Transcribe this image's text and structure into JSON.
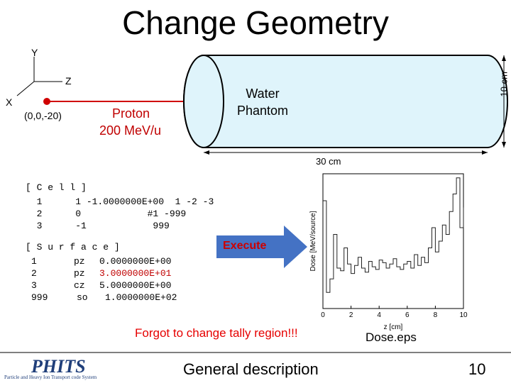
{
  "slide": {
    "title": "Change Geometry",
    "axes": {
      "y": "Y",
      "z": "Z",
      "x": "X"
    },
    "source_position": "(0,0,-20)",
    "beam": {
      "line1": "Proton",
      "line2": "200 MeV/u"
    },
    "phantom": {
      "line1": "Water",
      "line2": "Phantom",
      "diameter": "10 cm",
      "length": "30 cm"
    },
    "cell_header": "[ C e l l ]",
    "cell_rows": [
      "  1      1 -1.0000000E+00  1 -2 -3",
      "  2      0            #1 -999",
      "  3      -1            999"
    ],
    "surface_header": "[ S u r f a c e ]",
    "surface_rows": [
      {
        "num": "1",
        "type": "pz",
        "val": "0.0000000E+00"
      },
      {
        "num": "2",
        "type": "pz",
        "val": "3.0000000E+01"
      },
      {
        "num": "3",
        "type": "cz",
        "val": "5.0000000E+00"
      },
      {
        "num": "999",
        "type": "so",
        "val": "1.0000000E+02"
      }
    ],
    "execute_label": "Execute",
    "warning": "Forgot to change tally region!!!",
    "file_label": "Dose.eps",
    "footer_desc": "General description",
    "page_number": "10",
    "logo": {
      "main": "PHITS",
      "sub": "Particle and Heavy Ion Transport code System"
    }
  },
  "chart_data": {
    "type": "line",
    "xlabel": "z [cm]",
    "ylabel": "Dose [MeV/source]",
    "xlim": [
      0,
      10
    ],
    "xticks": [
      "0",
      "2",
      "4",
      "6",
      "8",
      "10"
    ],
    "x": [
      0,
      0.25,
      0.5,
      0.75,
      1,
      1.25,
      1.5,
      1.75,
      2,
      2.25,
      2.5,
      2.75,
      3,
      3.25,
      3.5,
      3.75,
      4,
      4.25,
      4.5,
      4.75,
      5,
      5.25,
      5.5,
      5.75,
      6,
      6.25,
      6.5,
      6.75,
      7,
      7.25,
      7.5,
      7.75,
      8,
      8.25,
      8.5,
      8.75,
      9,
      9.25,
      9.5,
      9.75,
      10
    ],
    "y": [
      0.8,
      0.12,
      0.22,
      0.55,
      0.3,
      0.28,
      0.45,
      0.33,
      0.26,
      0.32,
      0.38,
      0.3,
      0.27,
      0.35,
      0.31,
      0.29,
      0.36,
      0.34,
      0.3,
      0.33,
      0.37,
      0.31,
      0.29,
      0.33,
      0.35,
      0.3,
      0.4,
      0.32,
      0.38,
      0.34,
      0.45,
      0.6,
      0.42,
      0.5,
      0.62,
      0.55,
      0.72,
      0.85,
      0.97,
      0.6,
      0.75
    ]
  }
}
